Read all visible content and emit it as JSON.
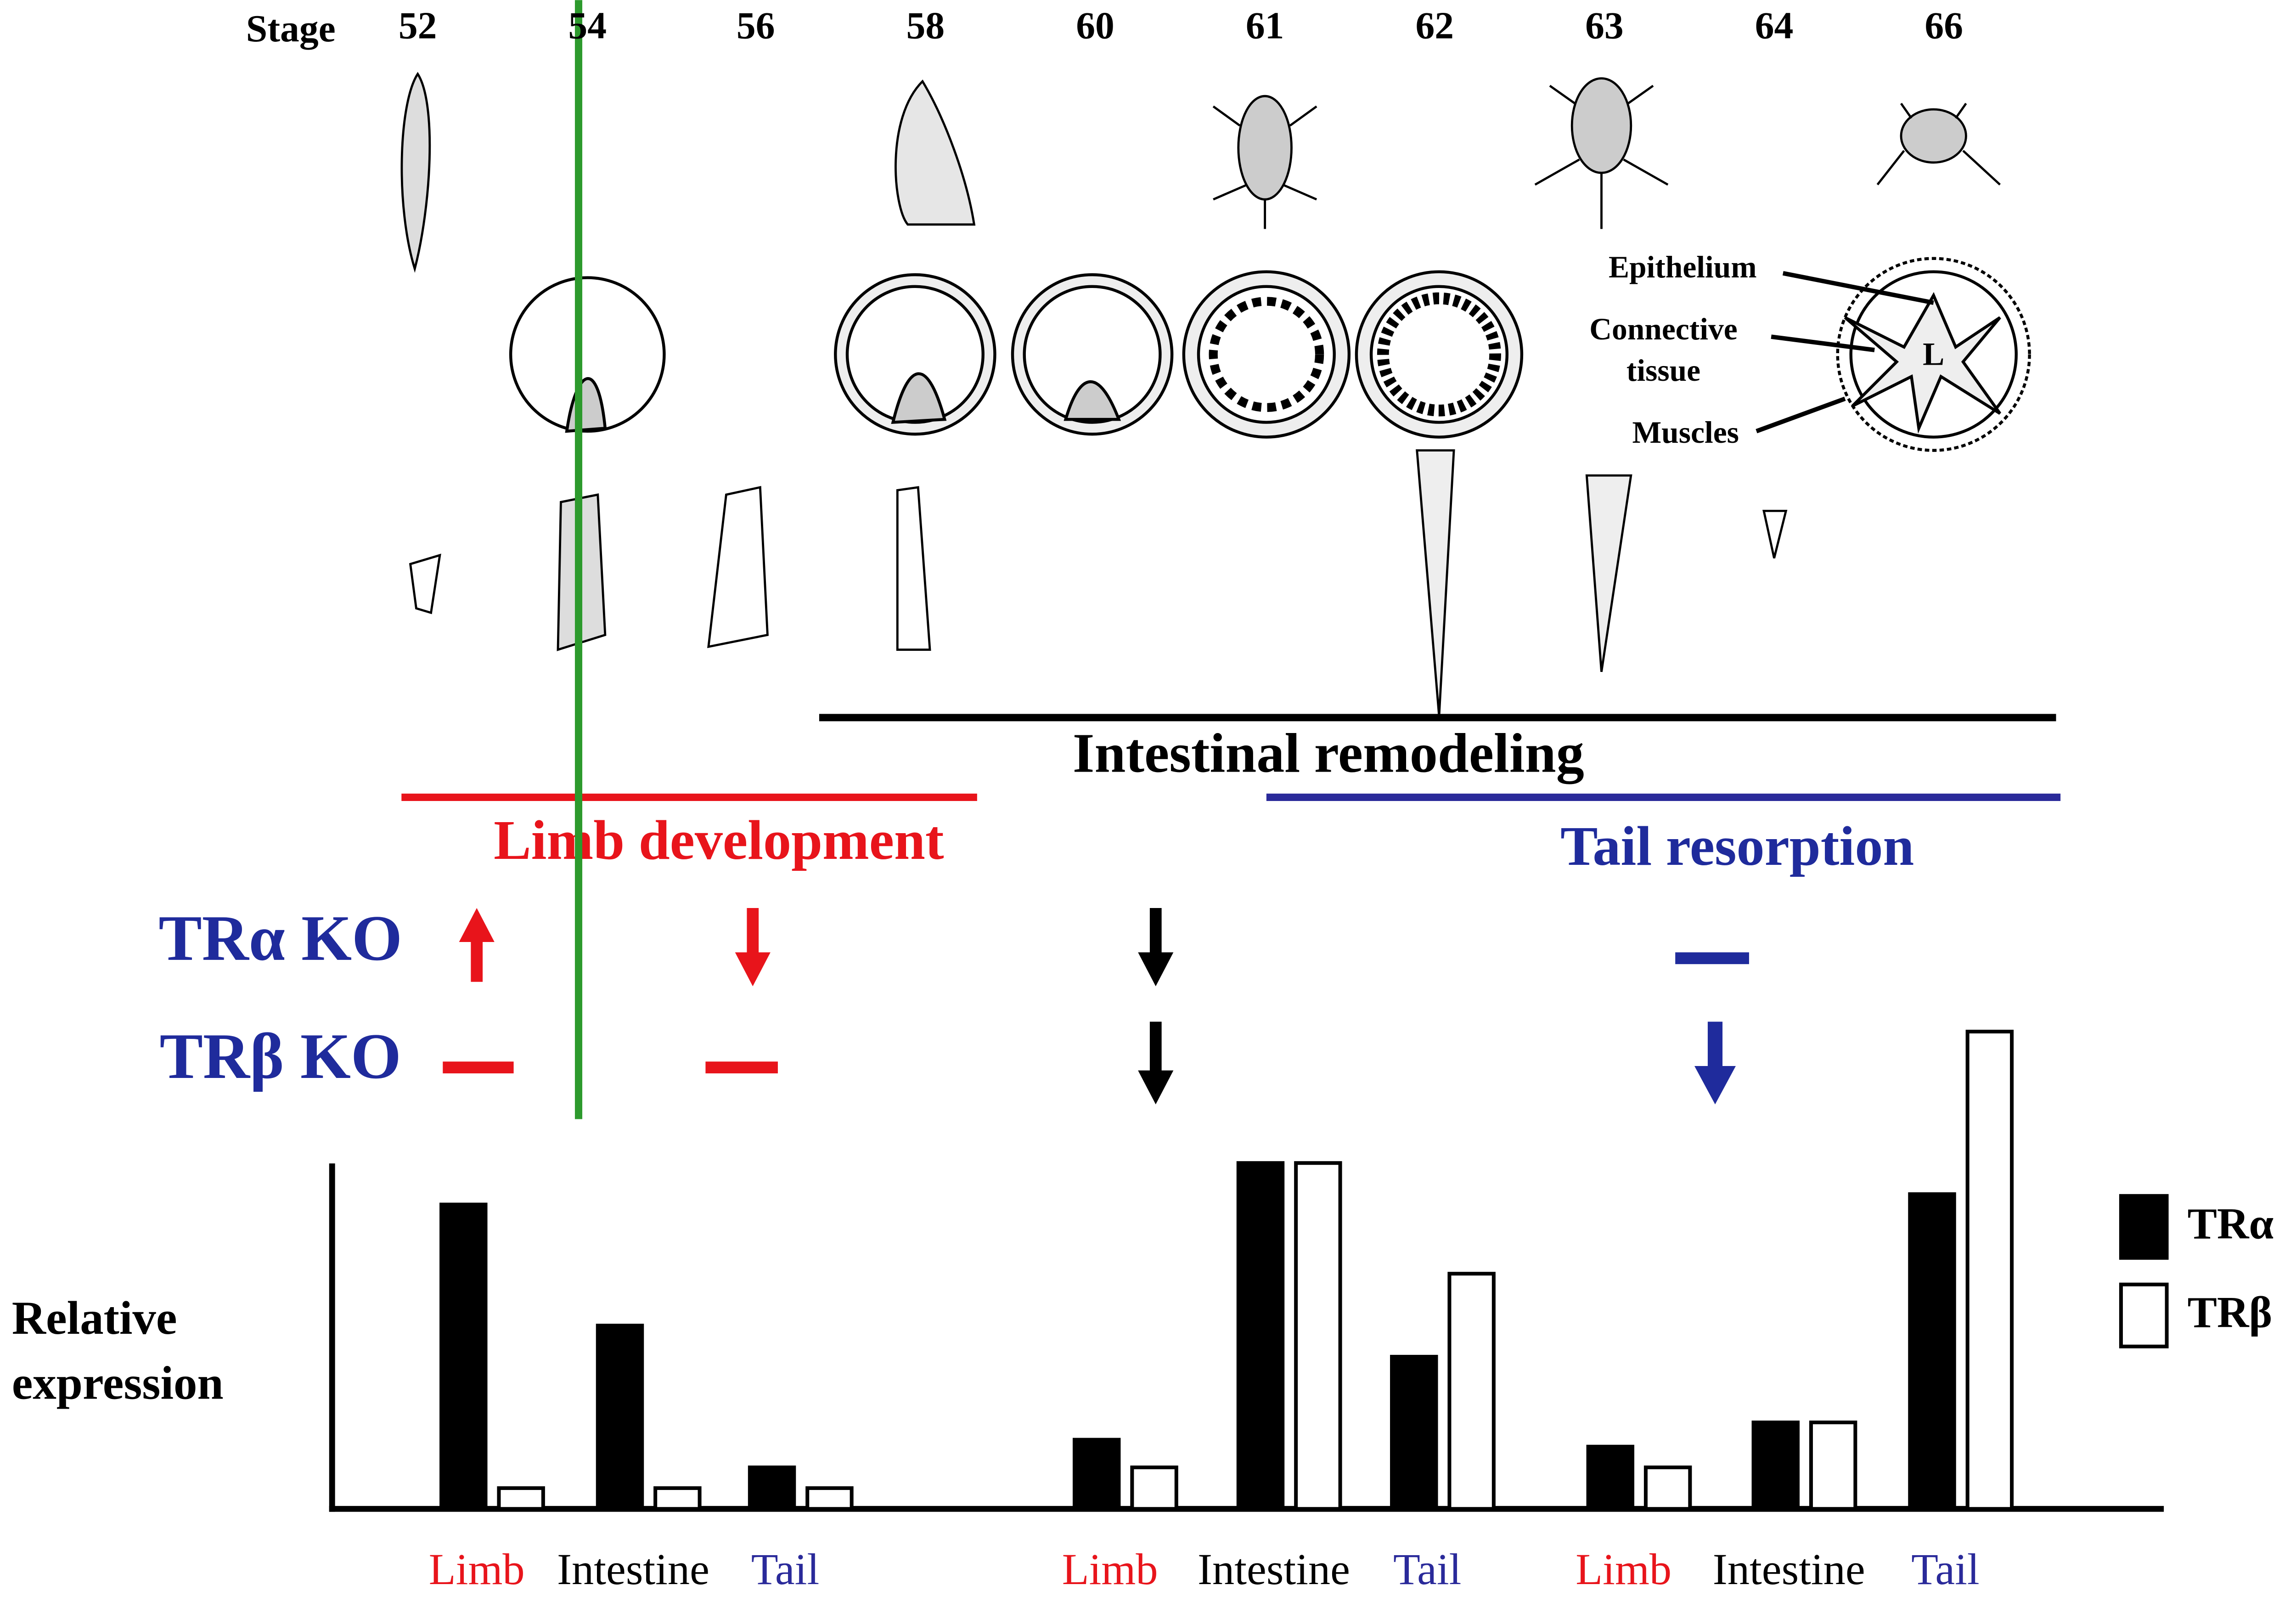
{
  "stage_row": {
    "label": "Stage",
    "stages": [
      "52",
      "54",
      "56",
      "58",
      "60",
      "61",
      "62",
      "63",
      "64",
      "66"
    ]
  },
  "intestine_labels": {
    "epithelium": "Epithelium",
    "connective_tissue": [
      "Connective",
      "tissue"
    ],
    "muscles": "Muscles",
    "lumen": "L"
  },
  "processes": {
    "intestinal": "Intestinal remodeling",
    "limb": "Limb development",
    "tail": "Tail resorption"
  },
  "knockouts": [
    "TRα KO",
    "TRβ KO"
  ],
  "chart_data": {
    "type": "bar",
    "y_label": [
      "Relative",
      "expression"
    ],
    "categories": [
      "Limb",
      "Intestine",
      "Tail",
      "Limb",
      "Intestine",
      "Tail",
      "Limb",
      "Intestine",
      "Tail"
    ],
    "category_colors": [
      "#e8141b",
      "#000000",
      "#2a2a9a",
      "#e8141b",
      "#000000",
      "#2a2a9a",
      "#e8141b",
      "#000000",
      "#2a2a9a"
    ],
    "series": [
      {
        "name": "TRα",
        "color": "#000000",
        "values": [
          88,
          53,
          12,
          20,
          100,
          44,
          18,
          25,
          91
        ]
      },
      {
        "name": "TRβ",
        "color": "#ffffff",
        "values": [
          6,
          6,
          6,
          12,
          100,
          68,
          12,
          25,
          138
        ]
      }
    ],
    "ylim": [
      0,
      140
    ]
  }
}
